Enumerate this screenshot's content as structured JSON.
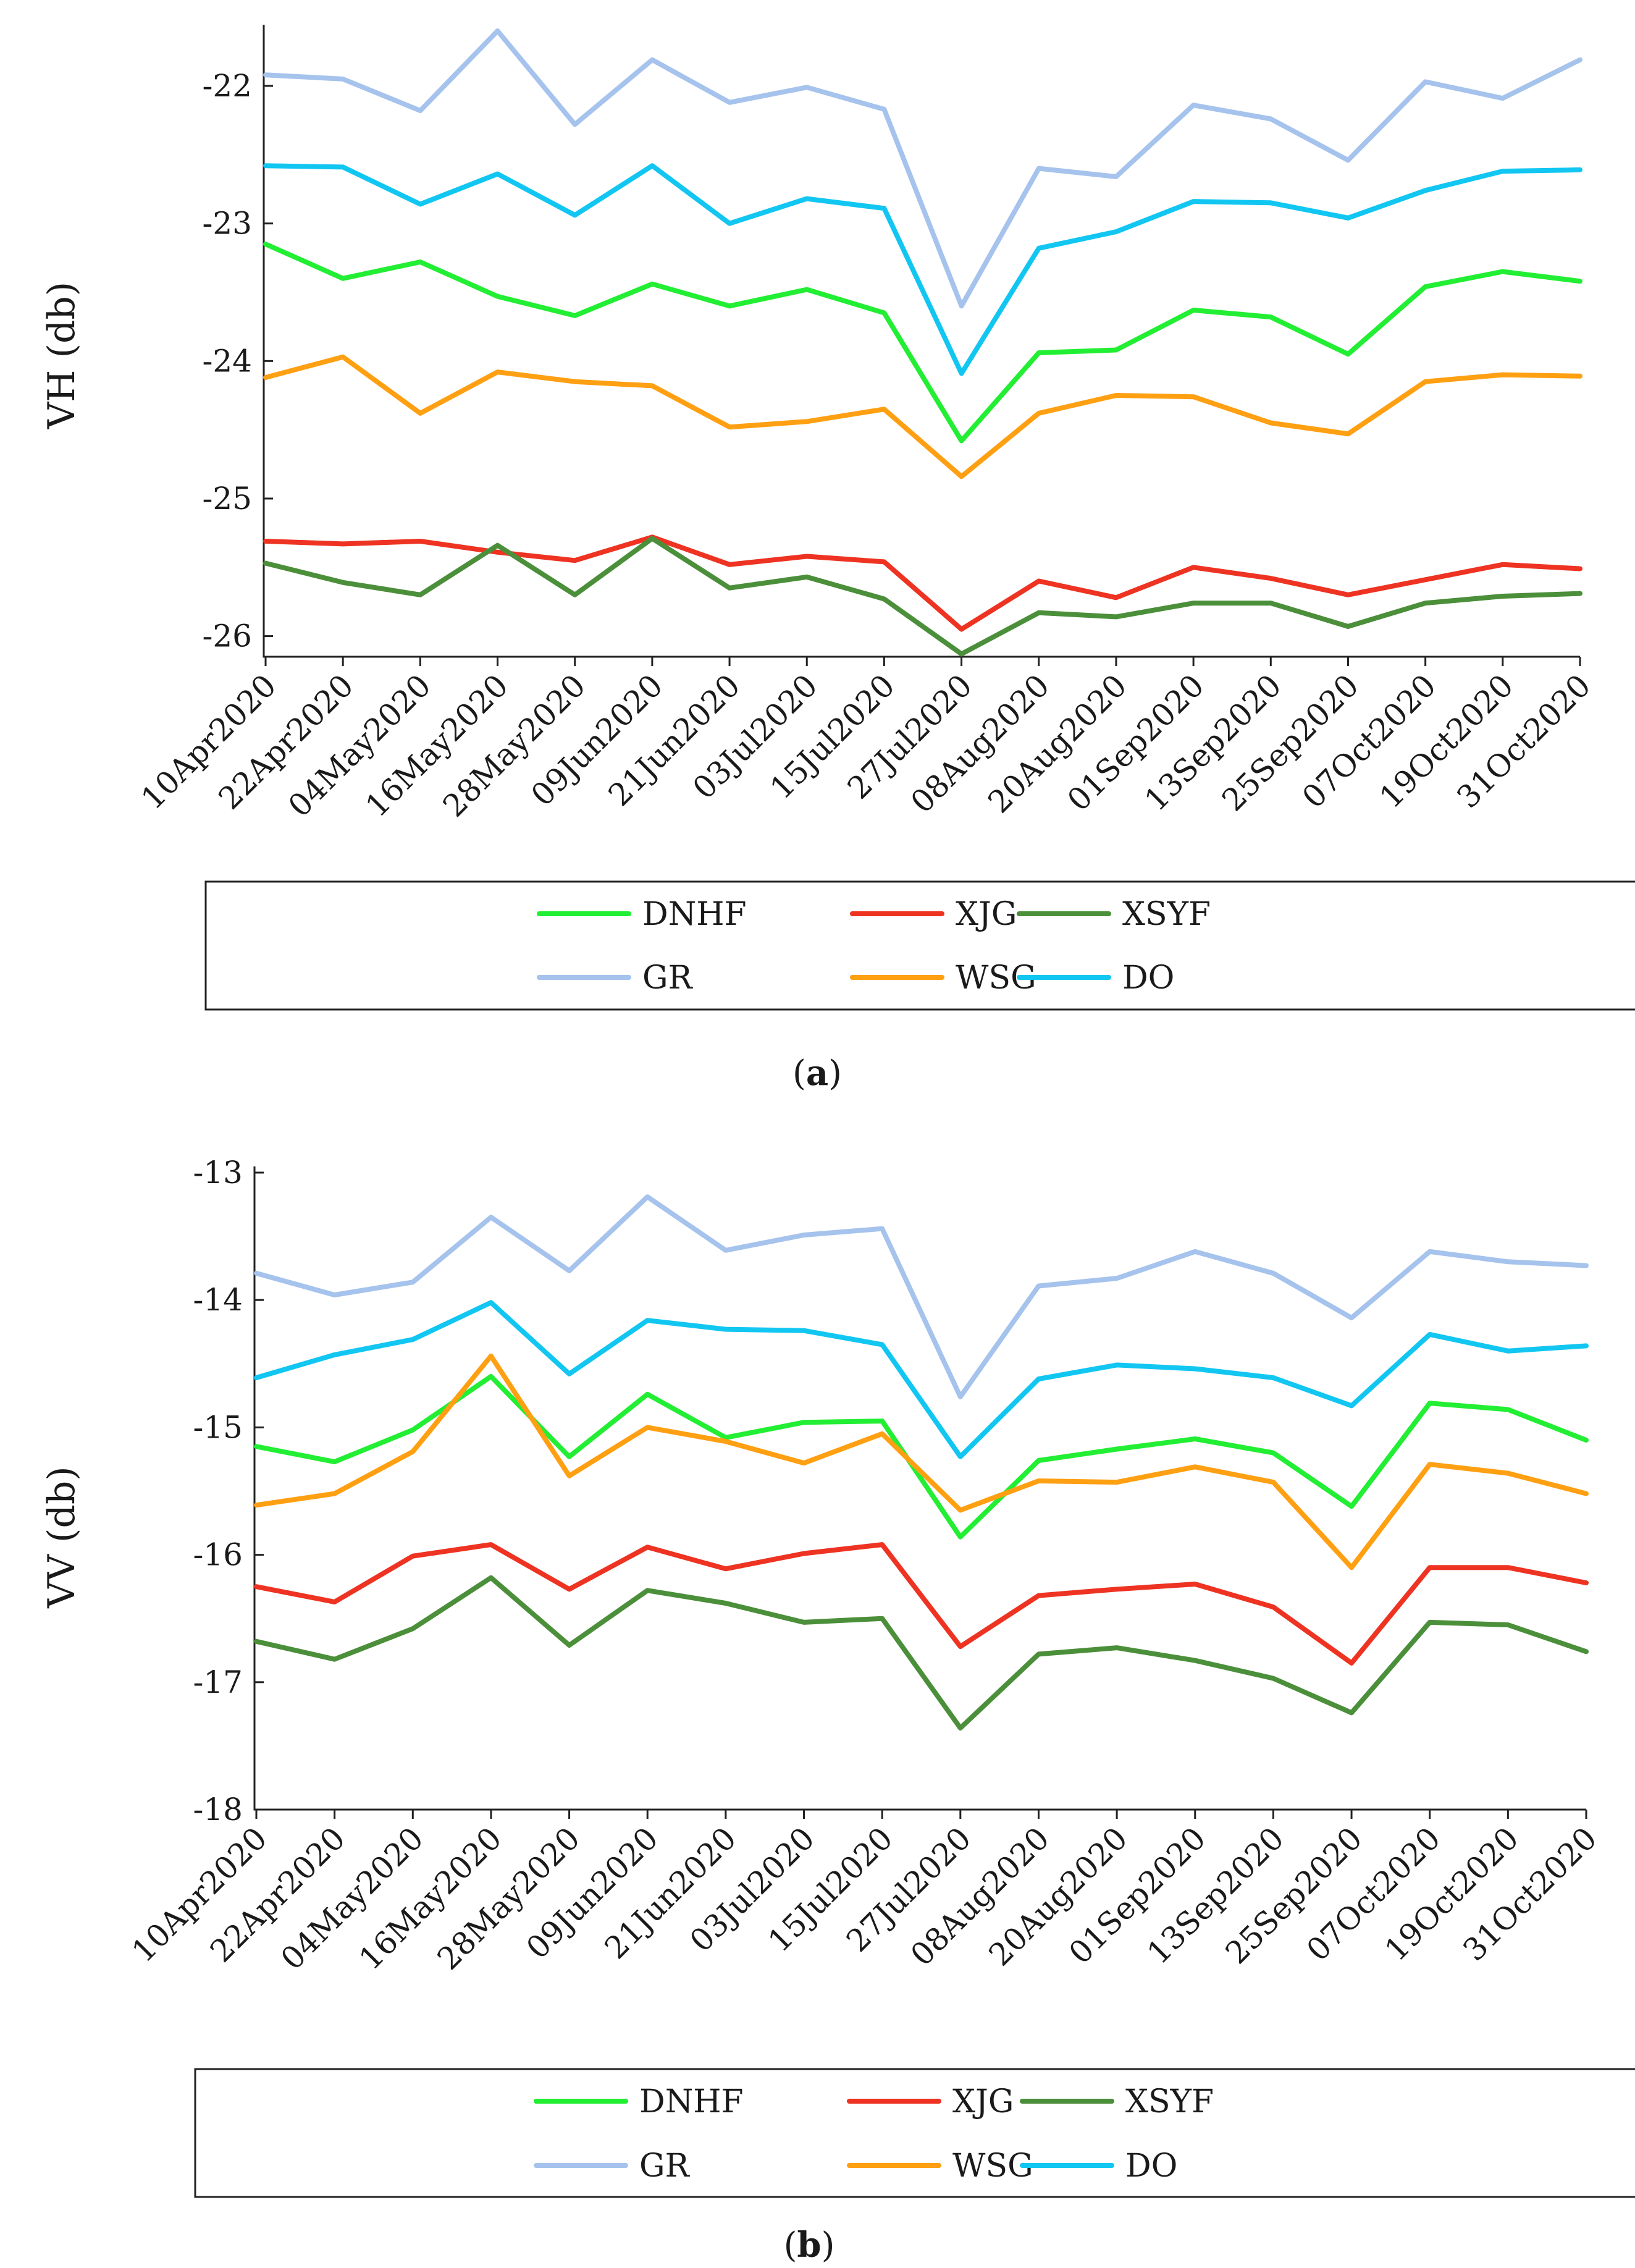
{
  "colors": {
    "DNHF": "#22ee33",
    "XJG": "#ee3322",
    "XSYF": "#4b8f3a",
    "GR": "#a5c3ec",
    "WSG": "#ff9f12",
    "DO": "#12c6f2"
  },
  "chart_data": [
    {
      "type": "line",
      "caption_prefix": "(",
      "caption_letter": "a",
      "caption_suffix": ")",
      "ylabel": "VH (db)",
      "xlabel": "",
      "ylim": [
        -26.15,
        -21.6
      ],
      "yticks": [
        -22,
        -23,
        -24,
        -25,
        -26
      ],
      "ytick_labels": [
        "-22",
        "-23",
        "-24",
        "-25",
        "-26"
      ],
      "categories": [
        "10Apr2020",
        "22Apr2020",
        "04May2020",
        "16May2020",
        "28May2020",
        "09Jun2020",
        "21Jun2020",
        "03Jul2020",
        "15Jul2020",
        "27Jul2020",
        "08Aug2020",
        "20Aug2020",
        "01Sep2020",
        "13Sep2020",
        "25Sep2020",
        "07Oct2020",
        "19Oct2020",
        "31Oct2020"
      ],
      "legend_order": [
        "DNHF",
        "XJG",
        "XSYF",
        "GR",
        "WSG",
        "DO"
      ],
      "series": [
        {
          "name": "DNHF",
          "values": [
            -23.15,
            -23.4,
            -23.28,
            -23.53,
            -23.67,
            -23.44,
            -23.6,
            -23.48,
            -23.65,
            -24.58,
            -23.94,
            -23.92,
            -23.63,
            -23.68,
            -23.95,
            -23.46,
            -23.35,
            -23.42
          ]
        },
        {
          "name": "XJG",
          "values": [
            -25.31,
            -25.33,
            -25.31,
            -25.39,
            -25.45,
            -25.28,
            -25.48,
            -25.42,
            -25.46,
            -25.95,
            -25.6,
            -25.72,
            -25.5,
            -25.58,
            -25.7,
            -25.59,
            -25.48,
            -25.51
          ]
        },
        {
          "name": "XSYF",
          "values": [
            -25.47,
            -25.61,
            -25.7,
            -25.34,
            -25.7,
            -25.29,
            -25.65,
            -25.57,
            -25.73,
            -26.13,
            -25.83,
            -25.86,
            -25.76,
            -25.76,
            -25.93,
            -25.76,
            -25.71,
            -25.69
          ]
        },
        {
          "name": "GR",
          "values": [
            -21.92,
            -21.95,
            -22.18,
            -21.6,
            -22.28,
            -21.81,
            -22.12,
            -22.01,
            -22.17,
            -23.6,
            -22.6,
            -22.66,
            -22.14,
            -22.24,
            -22.54,
            -21.97,
            -22.09,
            -21.81
          ]
        },
        {
          "name": "WSG",
          "values": [
            -24.12,
            -23.97,
            -24.38,
            -24.08,
            -24.15,
            -24.18,
            -24.48,
            -24.44,
            -24.35,
            -24.84,
            -24.38,
            -24.25,
            -24.26,
            -24.45,
            -24.53,
            -24.15,
            -24.1,
            -24.11
          ]
        },
        {
          "name": "DO",
          "values": [
            -22.58,
            -22.59,
            -22.86,
            -22.64,
            -22.94,
            -22.58,
            -23.0,
            -22.82,
            -22.89,
            -24.09,
            -23.18,
            -23.06,
            -22.84,
            -22.85,
            -22.96,
            -22.76,
            -22.62,
            -22.61
          ]
        }
      ]
    },
    {
      "type": "line",
      "caption_prefix": "(",
      "caption_letter": "b",
      "caption_suffix": ")",
      "ylabel": "VV (db)",
      "xlabel": "",
      "ylim": [
        -18,
        -13
      ],
      "yticks": [
        -13,
        -14,
        -15,
        -16,
        -17,
        -18
      ],
      "ytick_labels": [
        "-13",
        "-14",
        "-15",
        "-16",
        "-17",
        "-18"
      ],
      "categories": [
        "10Apr2020",
        "22Apr2020",
        "04May2020",
        "16May2020",
        "28May2020",
        "09Jun2020",
        "21Jun2020",
        "03Jul2020",
        "15Jul2020",
        "27Jul2020",
        "08Aug2020",
        "20Aug2020",
        "01Sep2020",
        "13Sep2020",
        "25Sep2020",
        "07Oct2020",
        "19Oct2020",
        "31Oct2020"
      ],
      "legend_order": [
        "DNHF",
        "XJG",
        "XSYF",
        "GR",
        "WSG",
        "DO"
      ],
      "series": [
        {
          "name": "DNHF",
          "values": [
            -15.15,
            -15.27,
            -15.02,
            -14.6,
            -15.23,
            -14.74,
            -15.08,
            -14.96,
            -14.95,
            -15.86,
            -15.26,
            -15.17,
            -15.09,
            -15.2,
            -15.62,
            -14.81,
            -14.86,
            -15.1
          ]
        },
        {
          "name": "XJG",
          "values": [
            -16.25,
            -16.37,
            -16.01,
            -15.92,
            -16.27,
            -15.94,
            -16.11,
            -15.99,
            -15.92,
            -16.72,
            -16.32,
            -16.27,
            -16.23,
            -16.41,
            -16.85,
            -16.1,
            -16.1,
            -16.22
          ]
        },
        {
          "name": "XSYF",
          "values": [
            -16.68,
            -16.82,
            -16.58,
            -16.18,
            -16.71,
            -16.28,
            -16.38,
            -16.53,
            -16.5,
            -17.36,
            -16.78,
            -16.73,
            -16.83,
            -16.97,
            -17.24,
            -16.53,
            -16.55,
            -16.76
          ]
        },
        {
          "name": "GR",
          "values": [
            -13.79,
            -13.96,
            -13.86,
            -13.35,
            -13.77,
            -13.19,
            -13.61,
            -13.49,
            -13.44,
            -14.76,
            -13.89,
            -13.83,
            -13.62,
            -13.79,
            -14.14,
            -13.62,
            -13.7,
            -13.73
          ]
        },
        {
          "name": "WSG",
          "values": [
            -15.61,
            -15.52,
            -15.19,
            -14.44,
            -15.38,
            -15.0,
            -15.11,
            -15.28,
            -15.05,
            -15.65,
            -15.42,
            -15.43,
            -15.31,
            -15.43,
            -16.1,
            -15.29,
            -15.36,
            -15.52
          ]
        },
        {
          "name": "DO",
          "values": [
            -14.61,
            -14.43,
            -14.31,
            -14.02,
            -14.58,
            -14.16,
            -14.23,
            -14.24,
            -14.35,
            -15.23,
            -14.62,
            -14.51,
            -14.54,
            -14.61,
            -14.83,
            -14.27,
            -14.4,
            -14.36
          ]
        }
      ]
    }
  ]
}
